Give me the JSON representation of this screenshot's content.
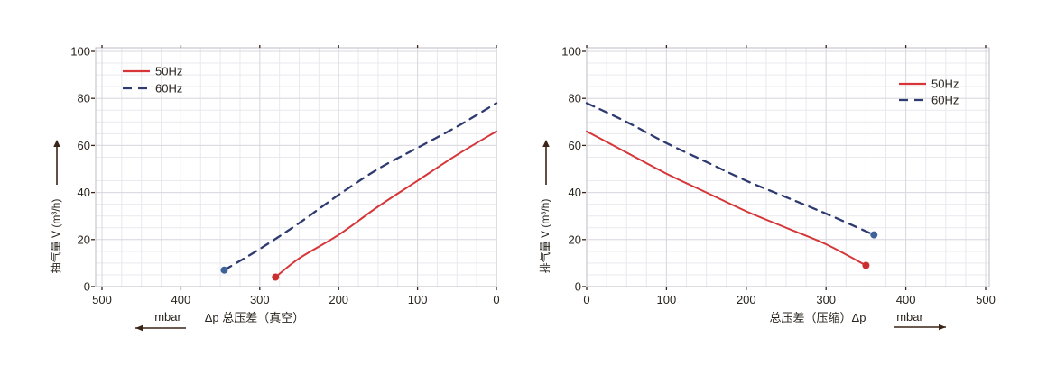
{
  "page": {
    "background": "#ffffff",
    "text_color": "#2a241e",
    "axis_accent_color": "#3a2417"
  },
  "colors": {
    "series_50hz": "#d63638",
    "series_60hz": "#2f3b70",
    "marker_50hz": "#c92f2f",
    "marker_60hz": "#3d6398",
    "grid_minor": "#e9e9ee",
    "grid_major": "#d9d9e0",
    "plot_border": "#bcbcc4"
  },
  "chart_data": [
    {
      "type": "line",
      "id": "vacuum",
      "x_axis": {
        "caption": "Δp  总压差（真空）",
        "unit": "mbar",
        "arrow_direction": "left",
        "range": [
          0,
          500
        ],
        "reversed": true,
        "ticks": [
          500,
          400,
          300,
          200,
          100,
          0
        ],
        "minor_step": 25
      },
      "y_axis": {
        "label": "抽气量 V (m³/h)",
        "range": [
          0,
          100
        ],
        "ticks": [
          0,
          20,
          40,
          60,
          80,
          100
        ],
        "minor_step": 5
      },
      "legend": {
        "position": "top-left",
        "items": [
          {
            "label": "50Hz",
            "style": "solid",
            "color": "#d63638"
          },
          {
            "label": "60Hz",
            "style": "dashed",
            "color": "#2f3b70"
          }
        ]
      },
      "series": [
        {
          "name": "50Hz",
          "color": "#d63638",
          "line": "solid",
          "marker": [
            280,
            4
          ],
          "marker_color": "#c92f2f",
          "points": [
            [
              280,
              4
            ],
            [
              250,
              12
            ],
            [
              200,
              22
            ],
            [
              150,
              34
            ],
            [
              100,
              45
            ],
            [
              50,
              56
            ],
            [
              0,
              66
            ]
          ]
        },
        {
          "name": "60Hz",
          "color": "#2f3b70",
          "line": "dashed",
          "marker": [
            345,
            7
          ],
          "marker_color": "#3d6398",
          "points": [
            [
              345,
              7
            ],
            [
              300,
              16
            ],
            [
              250,
              27
            ],
            [
              200,
              39
            ],
            [
              150,
              50
            ],
            [
              100,
              59
            ],
            [
              50,
              68
            ],
            [
              0,
              78
            ]
          ]
        }
      ]
    },
    {
      "type": "line",
      "id": "compression",
      "x_axis": {
        "caption": "总压差（压缩）Δp",
        "unit": "mbar",
        "arrow_direction": "right",
        "range": [
          0,
          500
        ],
        "reversed": false,
        "ticks": [
          0,
          100,
          200,
          300,
          400,
          500
        ],
        "minor_step": 25
      },
      "y_axis": {
        "label": "排气量 V (m³/h)",
        "range": [
          0,
          100
        ],
        "ticks": [
          0,
          20,
          40,
          60,
          80,
          100
        ],
        "minor_step": 5
      },
      "legend": {
        "position": "top-right",
        "items": [
          {
            "label": "50Hz",
            "style": "solid",
            "color": "#d63638"
          },
          {
            "label": "60Hz",
            "style": "dashed",
            "color": "#2f3b70"
          }
        ]
      },
      "series": [
        {
          "name": "50Hz",
          "color": "#d63638",
          "line": "solid",
          "marker": [
            350,
            9
          ],
          "marker_color": "#c92f2f",
          "points": [
            [
              0,
              66
            ],
            [
              50,
              57
            ],
            [
              100,
              48
            ],
            [
              150,
              40
            ],
            [
              200,
              32
            ],
            [
              250,
              25
            ],
            [
              300,
              18
            ],
            [
              350,
              9
            ]
          ]
        },
        {
          "name": "60Hz",
          "color": "#2f3b70",
          "line": "dashed",
          "marker": [
            360,
            22
          ],
          "marker_color": "#3d6398",
          "points": [
            [
              0,
              78
            ],
            [
              50,
              70
            ],
            [
              100,
              61
            ],
            [
              150,
              53
            ],
            [
              200,
              45
            ],
            [
              250,
              38
            ],
            [
              300,
              31
            ],
            [
              360,
              22
            ]
          ]
        }
      ]
    }
  ]
}
